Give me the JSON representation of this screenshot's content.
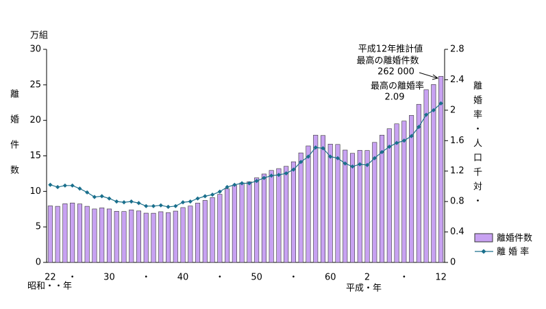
{
  "chart_data": {
    "type": "bar-line",
    "y_unit": "万組",
    "y_label": "離婚件数",
    "y2_label": "離婚率・人口千対・",
    "era_labels": [
      "昭和・・年",
      "平成・年"
    ],
    "annotations": [
      "平成12年推計値",
      "最高の離婚件数",
      "262 000",
      "最高の離婚率",
      "2.09"
    ],
    "categories": [
      "22",
      null,
      null,
      "・",
      null,
      null,
      null,
      null,
      "30",
      null,
      null,
      null,
      null,
      "・",
      null,
      null,
      null,
      null,
      "40",
      null,
      null,
      null,
      null,
      "・",
      null,
      null,
      null,
      null,
      "50",
      null,
      null,
      null,
      null,
      "・",
      null,
      null,
      null,
      null,
      "60",
      null,
      null,
      null,
      null,
      "2",
      null,
      null,
      null,
      null,
      "・",
      null,
      null,
      null,
      null,
      "12"
    ],
    "series": [
      {
        "name": "離婚件数",
        "color": "#c8a2f2",
        "values": [
          7.96,
          7.9,
          8.26,
          8.37,
          8.23,
          7.9,
          7.53,
          7.68,
          7.53,
          7.2,
          7.17,
          7.4,
          7.25,
          6.94,
          6.93,
          7.14,
          7.0,
          7.23,
          7.72,
          7.94,
          8.35,
          8.73,
          9.13,
          9.59,
          10.36,
          10.84,
          11.19,
          11.36,
          11.91,
          12.45,
          12.95,
          13.21,
          13.53,
          14.17,
          15.42,
          16.4,
          17.92,
          17.87,
          16.66,
          16.61,
          15.82,
          15.36,
          15.78,
          15.76,
          16.9,
          17.92,
          18.83,
          19.51,
          19.9,
          20.7,
          22.26,
          24.32,
          25.05,
          26.2
        ]
      },
      {
        "name": "離 婚 率",
        "color": "#1a6f8c",
        "axis": "y2",
        "values": [
          1.02,
          0.99,
          1.01,
          1.01,
          0.97,
          0.92,
          0.86,
          0.87,
          0.84,
          0.8,
          0.79,
          0.8,
          0.78,
          0.74,
          0.74,
          0.75,
          0.73,
          0.74,
          0.79,
          0.8,
          0.84,
          0.87,
          0.89,
          0.93,
          0.99,
          1.02,
          1.04,
          1.04,
          1.07,
          1.11,
          1.14,
          1.15,
          1.17,
          1.22,
          1.32,
          1.39,
          1.51,
          1.5,
          1.39,
          1.37,
          1.3,
          1.26,
          1.29,
          1.28,
          1.37,
          1.45,
          1.52,
          1.57,
          1.6,
          1.66,
          1.78,
          1.94,
          2.0,
          2.09
        ]
      }
    ],
    "ylim": [
      0,
      30
    ],
    "yticks": [
      0,
      5,
      10,
      15,
      20,
      25,
      30
    ],
    "y2lim": [
      0,
      2.8
    ],
    "y2ticks": [
      0,
      0.4,
      0.8,
      1.2,
      1.6,
      2,
      2.4,
      2.8
    ]
  }
}
